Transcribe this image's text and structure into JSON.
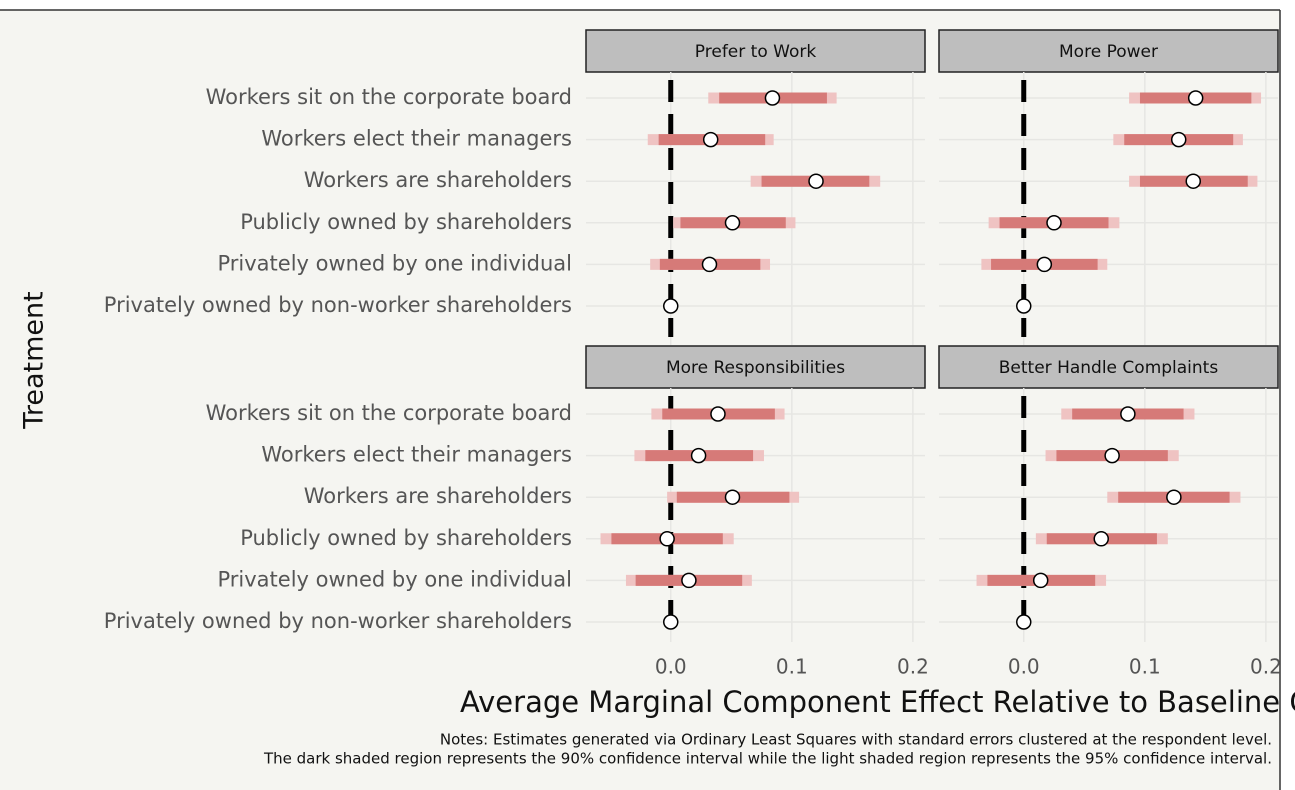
{
  "figure": {
    "y_label": "Treatment",
    "x_label": "Average Marginal Component Effect Relative to Baseline Co",
    "notes": [
      "Notes: Estimates generated via Ordinary Least Squares with standard errors clustered at the respondent level.",
      "The dark shaded region represents the 90% confidence interval while the light shaded region represents the 95% confidence interval."
    ]
  },
  "chart_data": [
    {
      "type": "dot",
      "title": "Prefer to Work",
      "categories": [
        "Workers sit on the corporate board",
        "Workers elect their managers",
        "Workers are shareholders",
        "Publicly owned by shareholders",
        "Privately owned by one individual",
        "Privately owned by non-worker shareholders"
      ],
      "values": [
        0.084,
        0.033,
        0.12,
        0.051,
        0.032,
        0
      ],
      "ci90_low": [
        0.04,
        -0.01,
        0.075,
        0.008,
        -0.009,
        null
      ],
      "ci90_high": [
        0.129,
        0.078,
        0.164,
        0.095,
        0.074,
        null
      ],
      "ci95_low": [
        0.031,
        -0.019,
        0.066,
        0.002,
        -0.017,
        null
      ],
      "ci95_high": [
        0.137,
        0.085,
        0.173,
        0.103,
        0.082,
        null
      ],
      "xlim": [
        -0.07,
        0.21
      ],
      "xticks": [
        {
          "value": 0,
          "label": "0.0"
        },
        0.1,
        0.2
      ],
      "refline": 0,
      "color_90": "#d67a78",
      "color_95": "#efc3c2"
    },
    {
      "type": "dot",
      "title": "More Power",
      "values": [
        0.142,
        0.128,
        0.14,
        0.025,
        0.017,
        0
      ],
      "ci90_low": [
        0.096,
        0.083,
        0.096,
        -0.02,
        -0.027,
        null
      ],
      "ci90_high": [
        0.188,
        0.173,
        0.185,
        0.07,
        0.061,
        null
      ],
      "ci95_low": [
        0.087,
        0.074,
        0.087,
        -0.029,
        -0.035,
        null
      ],
      "ci95_high": [
        0.196,
        0.181,
        0.193,
        0.079,
        0.069,
        null
      ],
      "xlim": [
        -0.07,
        0.21
      ],
      "xticks": [
        {
          "value": 0,
          "label": "0.0"
        },
        0.1,
        0.2
      ],
      "refline": 0,
      "color_90": "#d67a78",
      "color_95": "#efc3c2"
    },
    {
      "type": "dot",
      "title": "More Responsibilities",
      "categories": [
        "Workers sit on the corporate board",
        "Workers elect their managers",
        "Workers are shareholders",
        "Publicly owned by shareholders",
        "Privately owned by one individual",
        "Privately owned by non-worker shareholders"
      ],
      "values": [
        0.039,
        0.023,
        0.051,
        -0.003,
        0.015,
        0
      ],
      "ci90_low": [
        -0.007,
        -0.021,
        0.005,
        -0.049,
        -0.029,
        null
      ],
      "ci90_high": [
        0.086,
        0.068,
        0.098,
        0.043,
        0.059,
        null
      ],
      "ci95_low": [
        -0.016,
        -0.03,
        -0.003,
        -0.058,
        -0.037,
        null
      ],
      "ci95_high": [
        0.094,
        0.077,
        0.106,
        0.052,
        0.067,
        null
      ],
      "xlim": [
        -0.07,
        0.21
      ],
      "xticks": [
        {
          "value": 0,
          "label": "0.0"
        },
        0.1,
        0.2
      ],
      "refline": 0,
      "color_90": "#d67a78",
      "color_95": "#efc3c2"
    },
    {
      "type": "dot",
      "title": "Better Handle Complaints",
      "values": [
        0.086,
        0.073,
        0.124,
        0.064,
        0.014,
        0
      ],
      "ci90_low": [
        0.04,
        0.027,
        0.078,
        0.019,
        -0.03,
        null
      ],
      "ci90_high": [
        0.132,
        0.119,
        0.17,
        0.11,
        0.059,
        null
      ],
      "ci95_low": [
        0.031,
        0.018,
        0.069,
        0.01,
        -0.039,
        null
      ],
      "ci95_high": [
        0.141,
        0.128,
        0.179,
        0.119,
        0.068,
        null
      ],
      "xlim": [
        -0.07,
        0.21
      ],
      "xticks": [
        {
          "value": 0,
          "label": "0.0"
        },
        0.1,
        0.2
      ],
      "refline": 0,
      "color_90": "#d67a78",
      "color_95": "#efc3c2"
    }
  ]
}
